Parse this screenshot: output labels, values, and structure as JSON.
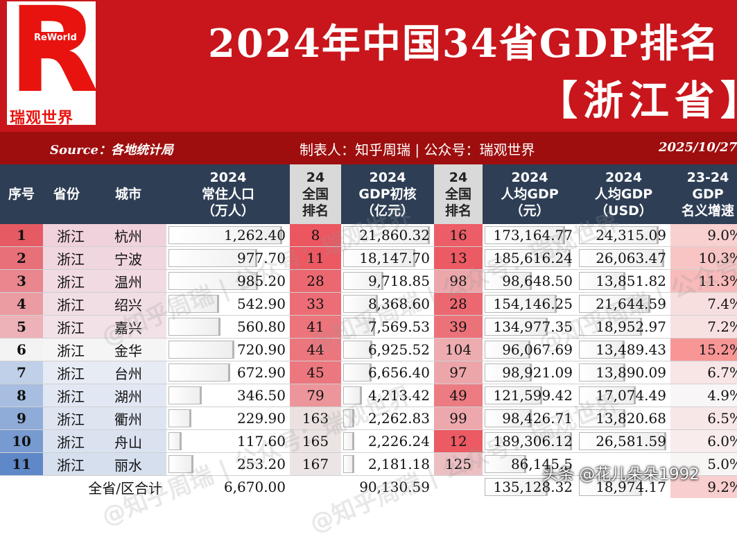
{
  "header": {
    "logo_tag": "ReWorld",
    "logo_name": "瑞观世界",
    "title": "2024年中国34省GDP排名",
    "subtitle": "【浙江省】",
    "source": "Source：各地统计局",
    "maker": "制表人：知乎周瑞 | 公众号：瑞观世界",
    "date": "2025/10/27"
  },
  "columns": {
    "seq": "序号",
    "province": "省份",
    "city": "城市",
    "pop": [
      "2024",
      "常住人口",
      "（万人）"
    ],
    "pop_rank": [
      "24",
      "全国",
      "排名"
    ],
    "gdp": [
      "2024",
      "GDP初核",
      "（亿元）"
    ],
    "gdp_rank": [
      "24",
      "全国",
      "排名"
    ],
    "pc_cny": [
      "2024",
      "人均GDP",
      "（元）"
    ],
    "pc_usd": [
      "2024",
      "人均GDP",
      "（USD）"
    ],
    "growth": [
      "23-24",
      "GDP",
      "名义增速"
    ]
  },
  "chart_data": {
    "type": "table",
    "title": "2024年中国34省GDP排名",
    "subtitle": "【浙江省】",
    "rows": [
      {
        "seq": "1",
        "province": "浙江",
        "city": "杭州",
        "pop": "1,262.40",
        "pop_v": 1262.4,
        "pop_rank": "8",
        "gdp": "21,860.32",
        "gdp_v": 21860.32,
        "gdp_rank": "16",
        "pc_cny": "173,164.77",
        "pc_cny_v": 173164.77,
        "pc_usd": "24,315.09",
        "pc_usd_v": 24315.09,
        "growth": "9.0%",
        "growth_v": 9.0
      },
      {
        "seq": "2",
        "province": "浙江",
        "city": "宁波",
        "pop": "977.70",
        "pop_v": 977.7,
        "pop_rank": "11",
        "gdp": "18,147.70",
        "gdp_v": 18147.7,
        "gdp_rank": "13",
        "pc_cny": "185,616.24",
        "pc_cny_v": 185616.24,
        "pc_usd": "26,063.47",
        "pc_usd_v": 26063.47,
        "growth": "10.3%",
        "growth_v": 10.3
      },
      {
        "seq": "3",
        "province": "浙江",
        "city": "温州",
        "pop": "985.20",
        "pop_v": 985.2,
        "pop_rank": "28",
        "gdp": "9,718.85",
        "gdp_v": 9718.85,
        "gdp_rank": "98",
        "pc_cny": "98,648.50",
        "pc_cny_v": 98648.5,
        "pc_usd": "13,851.82",
        "pc_usd_v": 13851.82,
        "growth": "11.3%",
        "growth_v": 11.3
      },
      {
        "seq": "4",
        "province": "浙江",
        "city": "绍兴",
        "pop": "542.90",
        "pop_v": 542.9,
        "pop_rank": "33",
        "gdp": "8,368.60",
        "gdp_v": 8368.6,
        "gdp_rank": "28",
        "pc_cny": "154,146.25",
        "pc_cny_v": 154146.25,
        "pc_usd": "21,644.59",
        "pc_usd_v": 21644.59,
        "growth": "7.4%",
        "growth_v": 7.4
      },
      {
        "seq": "5",
        "province": "浙江",
        "city": "嘉兴",
        "pop": "560.80",
        "pop_v": 560.8,
        "pop_rank": "41",
        "gdp": "7,569.53",
        "gdp_v": 7569.53,
        "gdp_rank": "39",
        "pc_cny": "134,977.35",
        "pc_cny_v": 134977.35,
        "pc_usd": "18,952.97",
        "pc_usd_v": 18952.97,
        "growth": "7.2%",
        "growth_v": 7.2
      },
      {
        "seq": "6",
        "province": "浙江",
        "city": "金华",
        "pop": "720.90",
        "pop_v": 720.9,
        "pop_rank": "44",
        "gdp": "6,925.52",
        "gdp_v": 6925.52,
        "gdp_rank": "104",
        "pc_cny": "96,067.69",
        "pc_cny_v": 96067.69,
        "pc_usd": "13,489.43",
        "pc_usd_v": 13489.43,
        "growth": "15.2%",
        "growth_v": 15.2
      },
      {
        "seq": "7",
        "province": "浙江",
        "city": "台州",
        "pop": "672.90",
        "pop_v": 672.9,
        "pop_rank": "45",
        "gdp": "6,656.40",
        "gdp_v": 6656.4,
        "gdp_rank": "97",
        "pc_cny": "98,921.09",
        "pc_cny_v": 98921.09,
        "pc_usd": "13,890.09",
        "pc_usd_v": 13890.09,
        "growth": "6.7%",
        "growth_v": 6.7
      },
      {
        "seq": "8",
        "province": "浙江",
        "city": "湖州",
        "pop": "346.50",
        "pop_v": 346.5,
        "pop_rank": "79",
        "gdp": "4,213.42",
        "gdp_v": 4213.42,
        "gdp_rank": "49",
        "pc_cny": "121,599.42",
        "pc_cny_v": 121599.42,
        "pc_usd": "17,074.49",
        "pc_usd_v": 17074.49,
        "growth": "4.9%",
        "growth_v": 4.9
      },
      {
        "seq": "9",
        "province": "浙江",
        "city": "衢州",
        "pop": "229.90",
        "pop_v": 229.9,
        "pop_rank": "163",
        "gdp": "2,262.83",
        "gdp_v": 2262.83,
        "gdp_rank": "99",
        "pc_cny": "98,426.71",
        "pc_cny_v": 98426.71,
        "pc_usd": "13,820.68",
        "pc_usd_v": 13820.68,
        "growth": "6.5%",
        "growth_v": 6.5
      },
      {
        "seq": "10",
        "province": "浙江",
        "city": "舟山",
        "pop": "117.60",
        "pop_v": 117.6,
        "pop_rank": "165",
        "gdp": "2,226.24",
        "gdp_v": 2226.24,
        "gdp_rank": "12",
        "pc_cny": "189,306.12",
        "pc_cny_v": 189306.12,
        "pc_usd": "26,581.59",
        "pc_usd_v": 26581.59,
        "growth": "6.0%",
        "growth_v": 6.0
      },
      {
        "seq": "11",
        "province": "浙江",
        "city": "丽水",
        "pop": "253.20",
        "pop_v": 253.2,
        "pop_rank": "167",
        "gdp": "2,181.18",
        "gdp_v": 2181.18,
        "gdp_rank": "125",
        "pc_cny": "86,145.5",
        "pc_cny_v": 86145.5,
        "pc_usd": "",
        "pc_usd_v": null,
        "growth": "5.0%",
        "growth_v": 5.0
      }
    ],
    "total": {
      "label": "全省/区合计",
      "pop": "6,670.00",
      "pop_v": 6670.0,
      "gdp": "90,130.59",
      "gdp_v": 90130.59,
      "pc_cny": "135,128.32",
      "pc_cny_v": 135128.32,
      "pc_usd": "18,974.17",
      "pc_usd_v": 18974.17,
      "growth": "9.2%",
      "growth_v": 9.2
    }
  },
  "watermark": "@知乎周瑞 | 公众号：瑞观世界",
  "credit": "头条 @花儿朵朵1992",
  "colors": {
    "header_red": "#c8161c",
    "source_bar": "#9e0e0e",
    "column_header": "#2e3e55",
    "rank_header": "#d9d9d9"
  }
}
